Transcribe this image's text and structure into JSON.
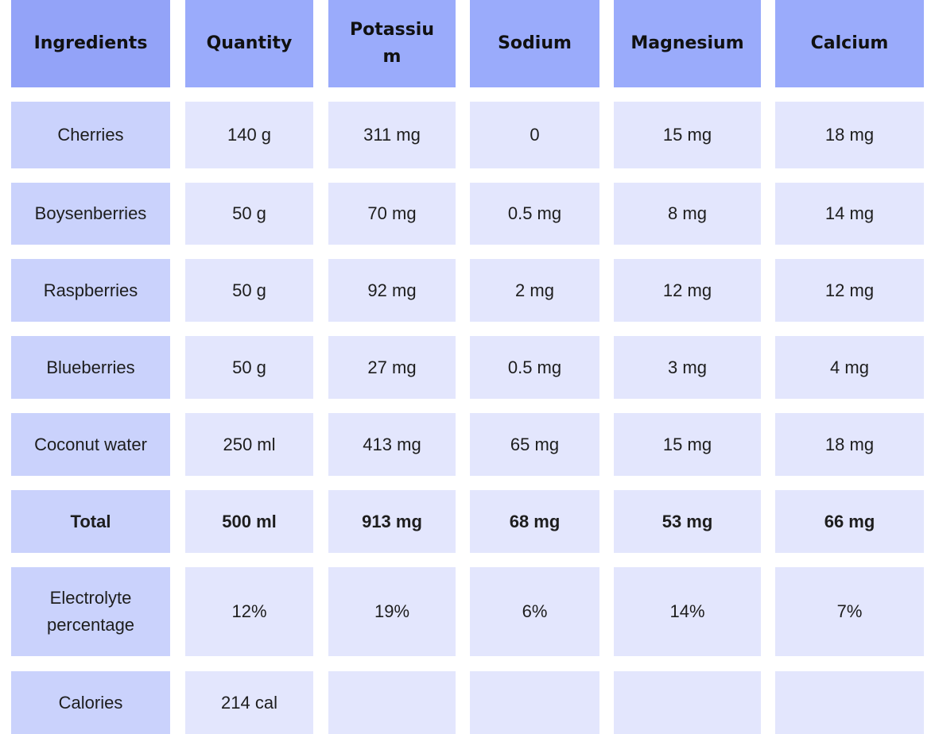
{
  "table": {
    "header": [
      "Ingredients",
      "Quantity",
      "Potassium",
      "Sodium",
      "Magnesium",
      "Calcium"
    ],
    "rows": [
      [
        "Cherries",
        "140 g",
        "311 mg",
        "0",
        "15 mg",
        "18 mg"
      ],
      [
        "Boysenberries",
        "50 g",
        "70 mg",
        "0.5 mg",
        "8 mg",
        "14 mg"
      ],
      [
        "Raspberries",
        "50 g",
        "92 mg",
        "2 mg",
        "12 mg",
        "12 mg"
      ],
      [
        "Blueberries",
        "50 g",
        "27 mg",
        "0.5 mg",
        "3 mg",
        "4 mg"
      ],
      [
        "Coconut water",
        "250 ml",
        "413 mg",
        "65 mg",
        "15 mg",
        "18 mg"
      ],
      [
        "Total",
        "500 ml",
        "913 mg",
        "68 mg",
        "53 mg",
        "66 mg"
      ],
      [
        "Electrolyte percentage",
        "12%",
        "19%",
        "6%",
        "14%",
        "7%"
      ],
      [
        "Calories",
        "214 cal"
      ]
    ]
  }
}
